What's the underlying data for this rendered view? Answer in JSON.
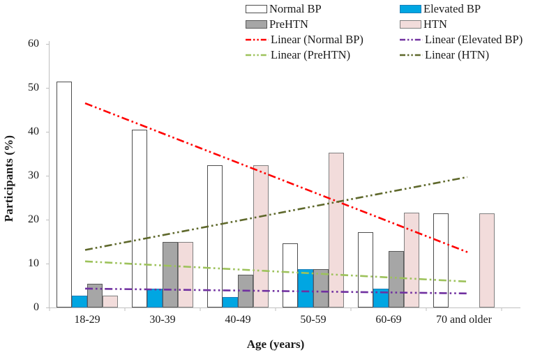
{
  "y_axis": {
    "title": "Participants (%)",
    "ticks": [
      0,
      10,
      20,
      30,
      40,
      50,
      60
    ],
    "max": 60
  },
  "x_axis": {
    "title": "Age (years)",
    "categories": [
      "18-29",
      "30-39",
      "40-49",
      "50-59",
      "60-69",
      "70 and older"
    ]
  },
  "legend": {
    "items": [
      {
        "label": "Normal BP",
        "type": "box",
        "fill": "#FFFFFF",
        "border": "#4d4d4d"
      },
      {
        "label": "Elevated BP",
        "type": "box",
        "fill": "#00A6E2",
        "border": "#1E7FB8"
      },
      {
        "label": "PreHTN",
        "type": "box",
        "fill": "#A6A6A6",
        "border": "#595959"
      },
      {
        "label": "HTN",
        "type": "box",
        "fill": "#F2DCDB",
        "border": "#7F7F7F"
      },
      {
        "label": "Linear (Normal BP)",
        "type": "line",
        "color": "#FF0000"
      },
      {
        "label": "Linear (Elevated BP)",
        "type": "line",
        "color": "#7030A0"
      },
      {
        "label": "Linear (PreHTN)",
        "type": "line",
        "color": "#9DC25B"
      },
      {
        "label": "Linear (HTN)",
        "type": "line",
        "color": "#5E682B"
      }
    ]
  },
  "chart_data": {
    "type": "bar",
    "title": "",
    "xlabel": "Age (years)",
    "ylabel": "Participants (%)",
    "ylim": [
      0,
      60
    ],
    "grid": false,
    "legend_position": "top-right",
    "categories": [
      "18-29",
      "30-39",
      "40-49",
      "50-59",
      "60-69",
      "70 and older"
    ],
    "series": [
      {
        "name": "Normal BP",
        "values": [
          51.4,
          40.4,
          32.4,
          14.6,
          17.2,
          21.4
        ],
        "fill": "#FFFFFF",
        "border": "#4d4d4d"
      },
      {
        "name": "Elevated BP",
        "values": [
          2.7,
          4.3,
          2.4,
          8.7,
          4.3,
          0
        ],
        "fill": "#00A6E2",
        "border": "#1E7FB8"
      },
      {
        "name": "PreHTN",
        "values": [
          5.4,
          14.9,
          7.4,
          8.7,
          12.9,
          0
        ],
        "fill": "#A6A6A6",
        "border": "#595959"
      },
      {
        "name": "HTN",
        "values": [
          2.7,
          14.9,
          32.4,
          35.2,
          21.6,
          21.4
        ],
        "fill": "#F2DCDB",
        "border": "#7F7F7F"
      }
    ],
    "trendlines": [
      {
        "name": "Linear (Normal BP)",
        "color": "#FF0000",
        "start_value": 46.5,
        "end_value": 12.6
      },
      {
        "name": "Linear (Elevated BP)",
        "color": "#7030A0",
        "start_value": 4.3,
        "end_value": 3.2
      },
      {
        "name": "Linear (PreHTN)",
        "color": "#9DC25B",
        "start_value": 10.5,
        "end_value": 5.9
      },
      {
        "name": "Linear (HTN)",
        "color": "#5E682B",
        "start_value": 13.1,
        "end_value": 29.7
      }
    ]
  }
}
